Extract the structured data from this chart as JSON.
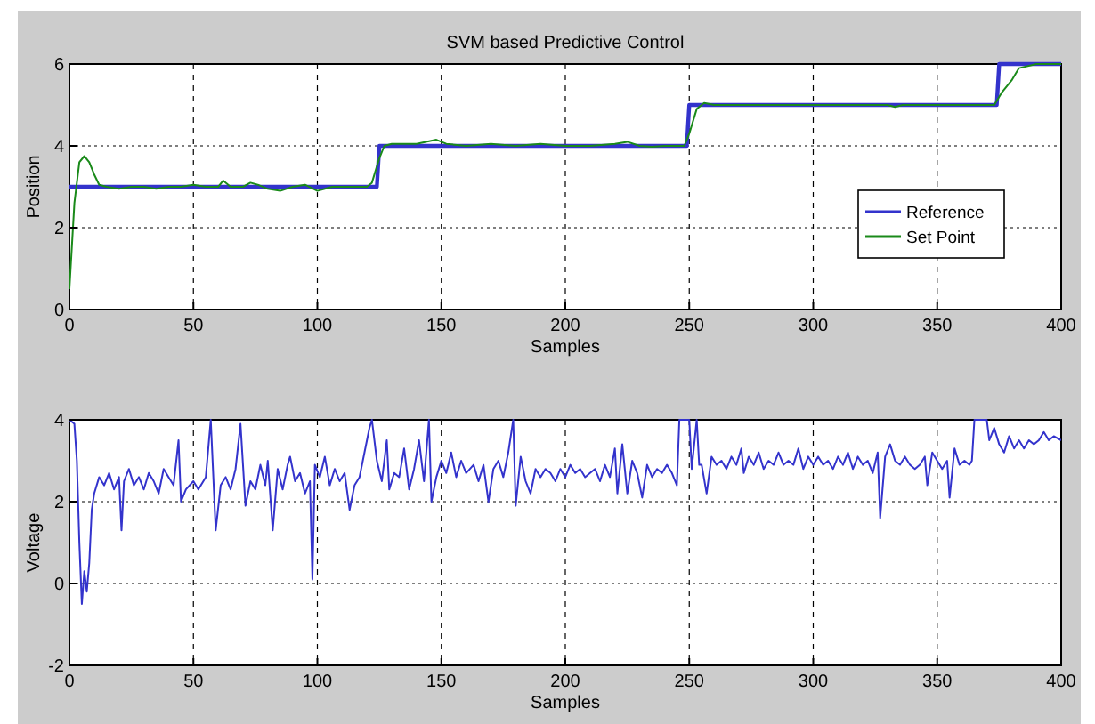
{
  "chart_data": [
    {
      "type": "line",
      "title": "SVM based  Predictive Control",
      "xlabel": "Samples",
      "ylabel": "Position",
      "xlim": [
        0,
        400
      ],
      "xticks": [
        0,
        50,
        100,
        150,
        200,
        250,
        300,
        350,
        400
      ],
      "ylim": [
        0,
        6
      ],
      "yticks": [
        0,
        2,
        4,
        6
      ],
      "grid": true,
      "legend": "right",
      "series": [
        {
          "name": "Reference",
          "color": "#3333cc",
          "x": [
            0,
            124,
            125,
            249,
            250,
            374,
            375,
            400
          ],
          "values": [
            3,
            3,
            4,
            4,
            5,
            5,
            6,
            6
          ]
        },
        {
          "name": "Set Point",
          "color": "#1a8a1a",
          "x": [
            0,
            2,
            4,
            6,
            8,
            10,
            12,
            15,
            20,
            25,
            30,
            35,
            40,
            45,
            50,
            55,
            60,
            62,
            65,
            70,
            73,
            76,
            80,
            85,
            90,
            95,
            100,
            103,
            106,
            110,
            115,
            120,
            122,
            125,
            127,
            130,
            135,
            140,
            148,
            152,
            160,
            170,
            180,
            190,
            200,
            210,
            220,
            225,
            230,
            235,
            240,
            245,
            248,
            250,
            253,
            256,
            260,
            270,
            280,
            290,
            300,
            310,
            320,
            330,
            333,
            336,
            340,
            350,
            360,
            370,
            373,
            376,
            380,
            383,
            390,
            400
          ],
          "values": [
            0.5,
            2.6,
            3.6,
            3.75,
            3.6,
            3.3,
            3.05,
            3,
            2.95,
            3,
            3,
            2.95,
            3,
            3,
            3.05,
            3,
            3,
            3.15,
            3,
            3,
            3.1,
            3.05,
            2.95,
            2.9,
            3,
            3.05,
            2.9,
            2.95,
            3,
            3,
            3,
            3,
            3.1,
            3.7,
            4,
            4.05,
            4.05,
            4.05,
            4.15,
            4.05,
            4,
            4.05,
            4,
            4.05,
            4,
            4,
            4.05,
            4.1,
            4,
            3.98,
            4,
            4,
            4,
            4.3,
            4.9,
            5.05,
            5,
            5,
            5,
            5,
            5,
            5,
            5,
            5,
            4.95,
            5,
            5,
            5,
            5,
            5,
            5,
            5.3,
            5.6,
            5.9,
            6,
            6
          ]
        }
      ]
    },
    {
      "type": "line",
      "xlabel": "Samples",
      "ylabel": "Voltage",
      "xlim": [
        0,
        400
      ],
      "xticks": [
        0,
        50,
        100,
        150,
        200,
        250,
        300,
        350,
        400
      ],
      "ylim": [
        -2,
        4
      ],
      "yticks": [
        -2,
        0,
        2,
        4
      ],
      "grid": true,
      "series": [
        {
          "color": "#3333cc",
          "x": [
            0,
            2,
            3,
            4,
            5,
            6,
            7,
            8,
            9,
            10,
            12,
            14,
            16,
            18,
            20,
            21,
            22,
            24,
            26,
            28,
            30,
            32,
            34,
            36,
            38,
            40,
            42,
            44,
            45,
            47,
            50,
            52,
            55,
            57,
            59,
            61,
            63,
            65,
            67,
            69,
            71,
            73,
            75,
            77,
            79,
            80,
            82,
            84,
            86,
            88,
            89,
            91,
            93,
            95,
            97,
            98,
            99,
            101,
            103,
            105,
            107,
            109,
            111,
            113,
            115,
            117,
            119,
            121,
            122,
            124,
            126,
            128,
            129,
            131,
            133,
            135,
            137,
            139,
            141,
            143,
            145,
            146,
            148,
            150,
            152,
            154,
            156,
            158,
            160,
            163,
            165,
            167,
            169,
            171,
            173,
            175,
            177,
            179,
            180,
            182,
            184,
            186,
            188,
            190,
            192,
            194,
            196,
            198,
            200,
            202,
            204,
            206,
            208,
            210,
            212,
            214,
            216,
            218,
            220,
            221,
            223,
            225,
            227,
            229,
            231,
            233,
            235,
            237,
            239,
            241,
            243,
            245,
            246,
            250,
            251,
            253,
            254,
            255,
            257,
            259,
            261,
            263,
            265,
            267,
            269,
            271,
            272,
            274,
            276,
            278,
            280,
            282,
            284,
            286,
            288,
            290,
            292,
            294,
            296,
            298,
            300,
            302,
            304,
            306,
            308,
            310,
            312,
            314,
            316,
            318,
            320,
            322,
            324,
            326,
            327,
            329,
            331,
            333,
            335,
            337,
            339,
            341,
            343,
            345,
            346,
            348,
            350,
            352,
            354,
            355,
            357,
            359,
            361,
            363,
            364,
            365,
            370,
            371,
            373,
            375,
            377,
            379,
            381,
            383,
            385,
            387,
            389,
            391,
            393,
            395,
            397,
            400
          ],
          "values": [
            4,
            3.9,
            3.0,
            1.0,
            -0.5,
            0.3,
            -0.2,
            0.5,
            1.8,
            2.2,
            2.6,
            2.4,
            2.7,
            2.3,
            2.6,
            1.3,
            2.5,
            2.8,
            2.4,
            2.6,
            2.3,
            2.7,
            2.5,
            2.2,
            2.8,
            2.6,
            2.4,
            3.5,
            2.0,
            2.3,
            2.5,
            2.3,
            2.6,
            4.0,
            1.3,
            2.4,
            2.6,
            2.3,
            2.8,
            3.9,
            1.9,
            2.5,
            2.3,
            2.9,
            2.4,
            3.0,
            1.3,
            2.8,
            2.3,
            2.9,
            3.1,
            2.5,
            2.7,
            2.2,
            2.5,
            0.1,
            2.9,
            2.6,
            3.1,
            2.4,
            2.8,
            2.5,
            2.7,
            1.8,
            2.4,
            2.6,
            3.2,
            3.8,
            4.0,
            3.0,
            2.5,
            3.5,
            2.3,
            2.7,
            2.6,
            3.3,
            2.3,
            2.8,
            3.5,
            2.5,
            4.0,
            2.0,
            2.6,
            3.0,
            2.7,
            3.2,
            2.6,
            3.0,
            2.7,
            2.9,
            2.5,
            2.9,
            2.0,
            2.8,
            3.0,
            2.6,
            3.2,
            4.0,
            1.9,
            3.1,
            2.5,
            2.2,
            2.8,
            2.6,
            2.8,
            2.7,
            2.5,
            2.8,
            2.6,
            2.9,
            2.7,
            2.8,
            2.6,
            2.7,
            2.8,
            2.5,
            2.9,
            2.6,
            3.3,
            2.2,
            3.4,
            2.2,
            3.0,
            2.7,
            2.1,
            2.9,
            2.6,
            2.8,
            2.7,
            2.9,
            2.7,
            2.4,
            4.0,
            4.0,
            2.8,
            4.0,
            2.9,
            2.9,
            2.2,
            3.1,
            2.9,
            3.0,
            2.8,
            3.1,
            2.9,
            3.3,
            2.7,
            3.1,
            2.9,
            3.2,
            2.8,
            3.0,
            2.9,
            3.2,
            2.9,
            3.0,
            2.9,
            3.3,
            2.8,
            3.1,
            2.9,
            3.1,
            2.9,
            3.0,
            2.8,
            3.1,
            2.9,
            3.2,
            2.8,
            3.1,
            2.9,
            3.0,
            2.7,
            3.2,
            1.6,
            3.1,
            3.4,
            3.0,
            2.9,
            3.1,
            2.9,
            2.8,
            2.9,
            3.1,
            2.4,
            3.2,
            3.0,
            2.8,
            3.0,
            2.1,
            3.3,
            2.9,
            3.0,
            2.9,
            3.0,
            4.0,
            4.0,
            3.5,
            3.8,
            3.4,
            3.2,
            3.6,
            3.3,
            3.5,
            3.3,
            3.5,
            3.4,
            3.5,
            3.7,
            3.5,
            3.6,
            3.5
          ]
        }
      ]
    }
  ]
}
